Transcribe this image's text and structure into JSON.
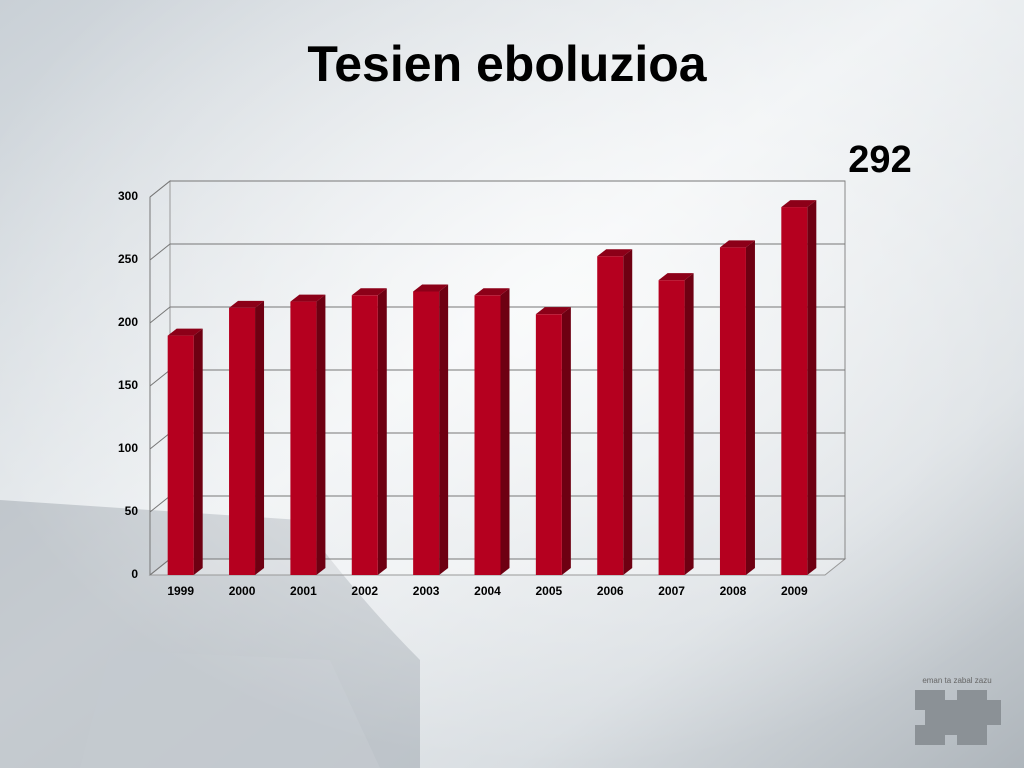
{
  "chart_data": {
    "type": "bar3d",
    "title": "Tesien eboluzioa",
    "annotation": "292",
    "categories": [
      "1999",
      "2000",
      "2001",
      "2002",
      "2003",
      "2004",
      "2005",
      "2006",
      "2007",
      "2008",
      "2009"
    ],
    "values": [
      190,
      212,
      217,
      222,
      225,
      222,
      207,
      253,
      234,
      260,
      292
    ],
    "color": "#b5001f",
    "ylim": [
      0,
      300
    ],
    "yticks": [
      0,
      50,
      100,
      150,
      200,
      250,
      300
    ],
    "grid": true
  },
  "logo_text": "eman ta zabal zazu"
}
